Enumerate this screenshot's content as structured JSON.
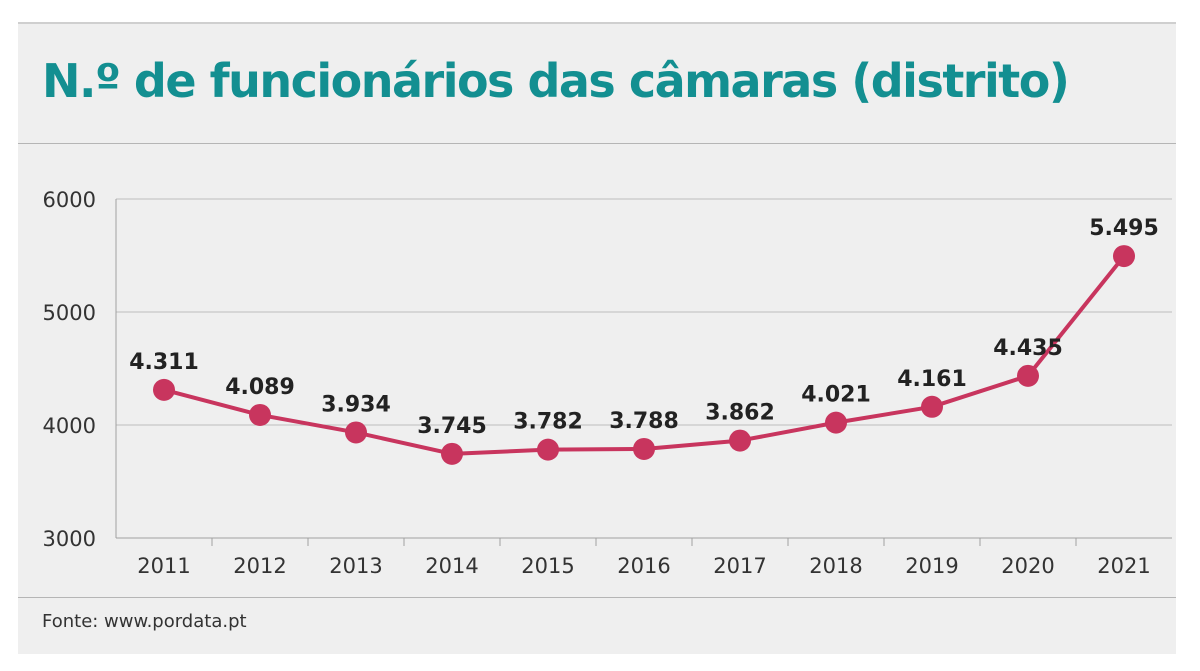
{
  "colors": {
    "title": "#138f91",
    "series": "#c8355e",
    "panel": "#efefef",
    "grid": "#bdbdbd"
  },
  "source": "Fonte: www.pordata.pt",
  "chart_data": {
    "type": "line",
    "title": "N.º de funcionários das câmaras (distrito)",
    "xlabel": "",
    "ylabel": "",
    "categories": [
      "2011",
      "2012",
      "2013",
      "2014",
      "2015",
      "2016",
      "2017",
      "2018",
      "2019",
      "2020",
      "2021"
    ],
    "values": [
      4311,
      4089,
      3934,
      3745,
      3782,
      3788,
      3862,
      4021,
      4161,
      4435,
      5495
    ],
    "data_labels": [
      "4.311",
      "4.089",
      "3.934",
      "3.745",
      "3.782",
      "3.788",
      "3.862",
      "4.021",
      "4.161",
      "4.435",
      "5.495"
    ],
    "ylim": [
      3000,
      6000
    ],
    "yticks": [
      "3000",
      "4000",
      "5000",
      "6000"
    ],
    "grid": true,
    "legend": "none"
  }
}
